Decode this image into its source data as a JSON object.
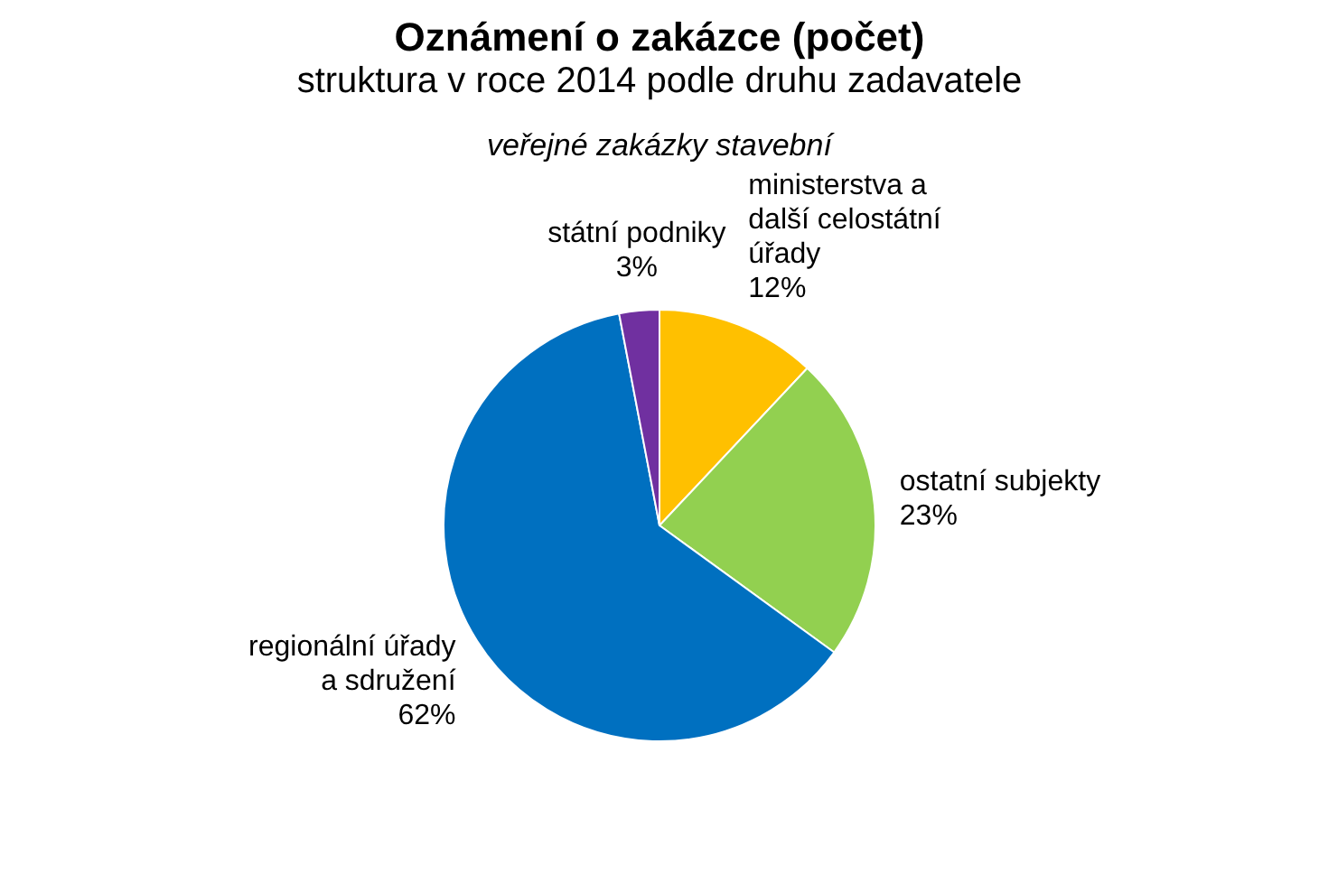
{
  "chart_data": {
    "type": "pie",
    "title": "Oznámení o zakázce (počet)",
    "subtitle": "struktura v roce 2014 podle druhu zadavatele",
    "annotations": [
      "veřejné zakázky stavební"
    ],
    "categories": [
      "ministerstva a další celostátní úřady",
      "ostatní subjekty",
      "regionální úřady a sdružení",
      "státní podniky"
    ],
    "values": [
      12,
      23,
      62,
      3
    ],
    "value_labels": [
      "12%",
      "23%",
      "62%",
      "3%"
    ],
    "colors": [
      "#ffc000",
      "#92d050",
      "#0070c0",
      "#7030a0"
    ]
  }
}
